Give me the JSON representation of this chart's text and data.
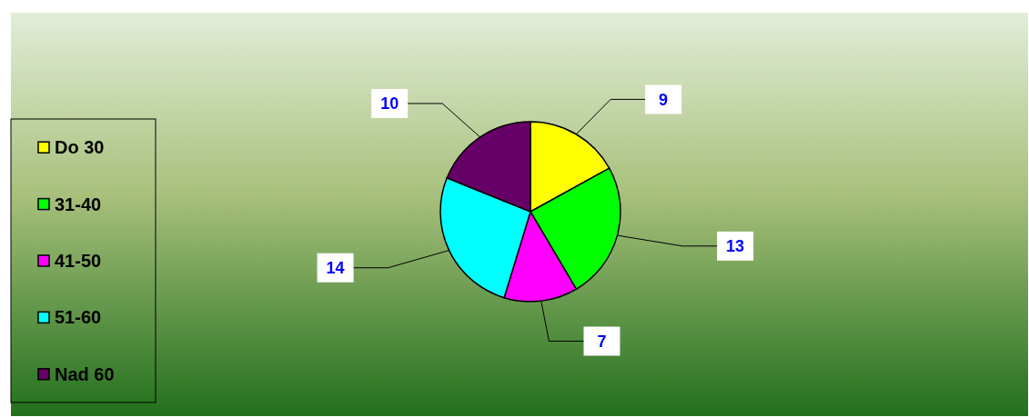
{
  "chart_data": {
    "type": "pie",
    "categories": [
      "Do 30",
      "31-40",
      "41-50",
      "51-60",
      "Nad 60"
    ],
    "values": [
      9,
      13,
      7,
      14,
      10
    ],
    "colors": [
      "#ffff00",
      "#00ff00",
      "#ff00ff",
      "#00ffff",
      "#660066"
    ],
    "data_labels": true,
    "legend": "left"
  }
}
